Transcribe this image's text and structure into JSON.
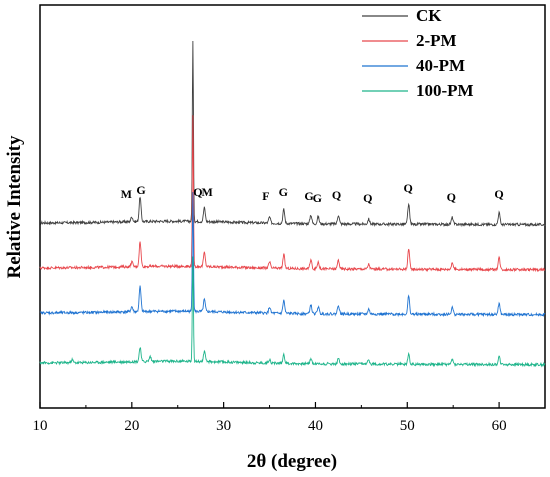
{
  "chart_data": {
    "type": "line",
    "xlabel": "2θ (degree)",
    "ylabel": "Relative Intensity",
    "xlim": [
      10,
      65
    ],
    "x_ticks": [
      10,
      20,
      30,
      40,
      50,
      60
    ],
    "y_ticks": [],
    "grid": false,
    "legend_position": "top-right",
    "series": [
      {
        "name": "CK",
        "color": "#404040",
        "baseline": 185,
        "peaks": [
          [
            20.0,
            5
          ],
          [
            20.9,
            25
          ],
          [
            26.65,
            180
          ],
          [
            27.9,
            14
          ],
          [
            35.0,
            6
          ],
          [
            36.55,
            14
          ],
          [
            39.5,
            9
          ],
          [
            40.3,
            7
          ],
          [
            42.5,
            9
          ],
          [
            45.8,
            5
          ],
          [
            50.15,
            20
          ],
          [
            54.9,
            7
          ],
          [
            60.0,
            12
          ]
        ]
      },
      {
        "name": "2-PM",
        "color": "#e8474c",
        "baseline": 140,
        "peaks": [
          [
            20.0,
            5
          ],
          [
            20.9,
            25
          ],
          [
            26.65,
            150
          ],
          [
            27.9,
            14
          ],
          [
            35.0,
            6
          ],
          [
            36.55,
            14
          ],
          [
            39.5,
            9
          ],
          [
            40.3,
            7
          ],
          [
            42.5,
            9
          ],
          [
            45.8,
            5
          ],
          [
            50.15,
            20
          ],
          [
            54.9,
            7
          ],
          [
            60.0,
            12
          ]
        ]
      },
      {
        "name": "40-PM",
        "color": "#1f73d1",
        "baseline": 95,
        "peaks": [
          [
            20.0,
            5
          ],
          [
            20.9,
            25
          ],
          [
            26.65,
            120
          ],
          [
            27.9,
            12
          ],
          [
            35.0,
            6
          ],
          [
            36.55,
            13
          ],
          [
            39.5,
            9
          ],
          [
            40.3,
            7
          ],
          [
            42.5,
            9
          ],
          [
            45.8,
            5
          ],
          [
            50.15,
            18
          ],
          [
            54.9,
            7
          ],
          [
            60.0,
            11
          ]
        ]
      },
      {
        "name": "100-PM",
        "color": "#1db48a",
        "baseline": 45,
        "peaks": [
          [
            13.5,
            3
          ],
          [
            20.9,
            14
          ],
          [
            22.0,
            5
          ],
          [
            26.65,
            105
          ],
          [
            27.9,
            10
          ],
          [
            35.0,
            4
          ],
          [
            36.55,
            9
          ],
          [
            39.5,
            5
          ],
          [
            42.5,
            5
          ],
          [
            45.8,
            4
          ],
          [
            50.15,
            10
          ],
          [
            54.9,
            5
          ],
          [
            60.0,
            8
          ]
        ]
      }
    ],
    "annotations": [
      {
        "text": "Q",
        "x": 27.2,
        "y": 212
      },
      {
        "text": "G",
        "x": 21.0,
        "y": 214
      },
      {
        "text": "M",
        "x": 19.4,
        "y": 210
      },
      {
        "text": "M",
        "x": 28.2,
        "y": 212
      },
      {
        "text": "F",
        "x": 34.6,
        "y": 208
      },
      {
        "text": "G",
        "x": 36.5,
        "y": 212
      },
      {
        "text": "G",
        "x": 39.3,
        "y": 208
      },
      {
        "text": "G",
        "x": 40.2,
        "y": 206
      },
      {
        "text": "Q",
        "x": 42.3,
        "y": 209
      },
      {
        "text": "Q",
        "x": 45.7,
        "y": 206
      },
      {
        "text": "Q",
        "x": 50.1,
        "y": 216
      },
      {
        "text": "Q",
        "x": 54.8,
        "y": 207
      },
      {
        "text": "Q",
        "x": 60.0,
        "y": 210
      }
    ]
  }
}
